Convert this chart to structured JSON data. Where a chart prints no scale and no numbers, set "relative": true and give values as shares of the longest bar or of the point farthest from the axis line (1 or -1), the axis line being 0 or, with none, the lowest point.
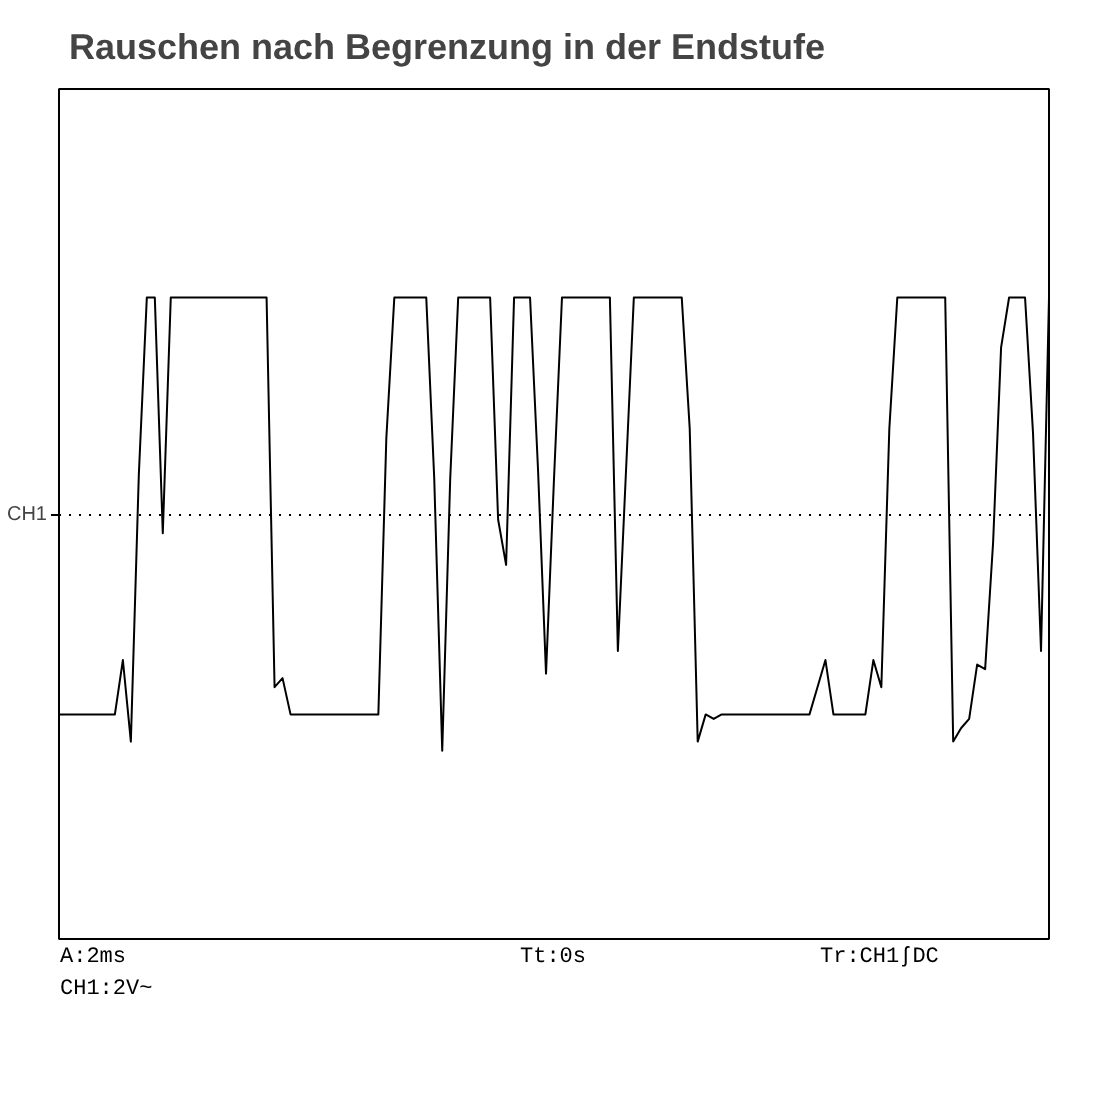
{
  "chart_data": {
    "type": "line",
    "title": "Rauschen nach Begrenzung in der Endstufe",
    "annotations": [
      "A:2ms",
      "Tt:0s",
      "Tr:CH1ʃDC",
      "CH1:2V~"
    ],
    "relative": true,
    "grid": false,
    "categories": [
      null,
      null,
      null,
      null,
      null,
      null,
      null,
      null,
      null,
      null,
      null,
      null,
      null,
      null,
      null,
      null,
      null,
      null,
      null,
      null,
      null,
      null,
      null,
      null,
      null,
      null,
      null,
      null,
      null,
      null,
      null,
      null,
      null,
      null,
      null,
      null,
      null,
      null,
      null,
      null,
      null,
      null,
      null,
      null,
      null,
      null,
      null,
      null,
      null,
      null,
      null,
      null,
      null,
      null,
      null,
      null,
      null,
      null,
      null,
      null,
      null,
      null,
      null,
      null,
      null,
      null,
      null,
      null,
      null,
      null,
      null,
      null,
      null,
      null,
      null,
      null,
      null,
      null,
      null,
      null,
      null,
      null,
      null,
      null,
      null,
      null,
      null,
      null,
      null,
      null,
      null,
      null,
      null,
      null,
      null,
      null,
      null,
      null,
      null,
      null,
      null,
      null,
      null,
      null,
      null,
      null,
      null,
      null,
      null,
      null,
      null,
      null,
      null,
      null,
      null,
      null,
      null,
      null,
      null,
      null,
      null,
      null,
      null,
      null,
      null
    ],
    "series": [
      {
        "color": "#000000",
        "values": [
          0.08,
          0.08,
          0.08,
          0.08,
          0.08,
          0.08,
          0.08,
          0.08,
          0.2,
          0.02,
          0.61,
          1,
          1,
          0.48,
          1,
          1,
          1,
          1,
          1,
          1,
          1,
          1,
          1,
          1,
          1,
          1,
          1,
          0.14,
          0.16,
          0.08,
          0.08,
          0.08,
          0.08,
          0.08,
          0.08,
          0.08,
          0.08,
          0.08,
          0.08,
          0.08,
          0.08,
          0.69,
          1,
          1,
          1,
          1,
          1,
          0.6,
          0,
          0.6,
          1,
          1,
          1,
          1,
          1,
          0.51,
          0.41,
          1,
          1,
          1,
          0.62,
          0.17,
          0.6,
          1,
          1,
          1,
          1,
          1,
          1,
          1,
          0.22,
          0.61,
          1,
          1,
          1,
          1,
          1,
          1,
          1,
          0.71,
          0.02,
          0.08,
          0.07,
          0.08,
          0.08,
          0.08,
          0.08,
          0.08,
          0.08,
          0.08,
          0.08,
          0.08,
          0.08,
          0.08,
          0.08,
          0.14,
          0.2,
          0.08,
          0.08,
          0.08,
          0.08,
          0.08,
          0.2,
          0.14,
          0.71,
          1,
          1,
          1,
          1,
          1,
          1,
          1,
          0.02,
          0.05,
          0.07,
          0.19,
          0.18,
          0.46,
          0.89,
          1,
          1,
          1,
          0.7,
          0.22,
          1
        ]
      }
    ],
    "ref_lines": [
      {
        "axis": "y",
        "value": 0.52,
        "label": "CH1",
        "line_style": "dotted"
      }
    ]
  }
}
